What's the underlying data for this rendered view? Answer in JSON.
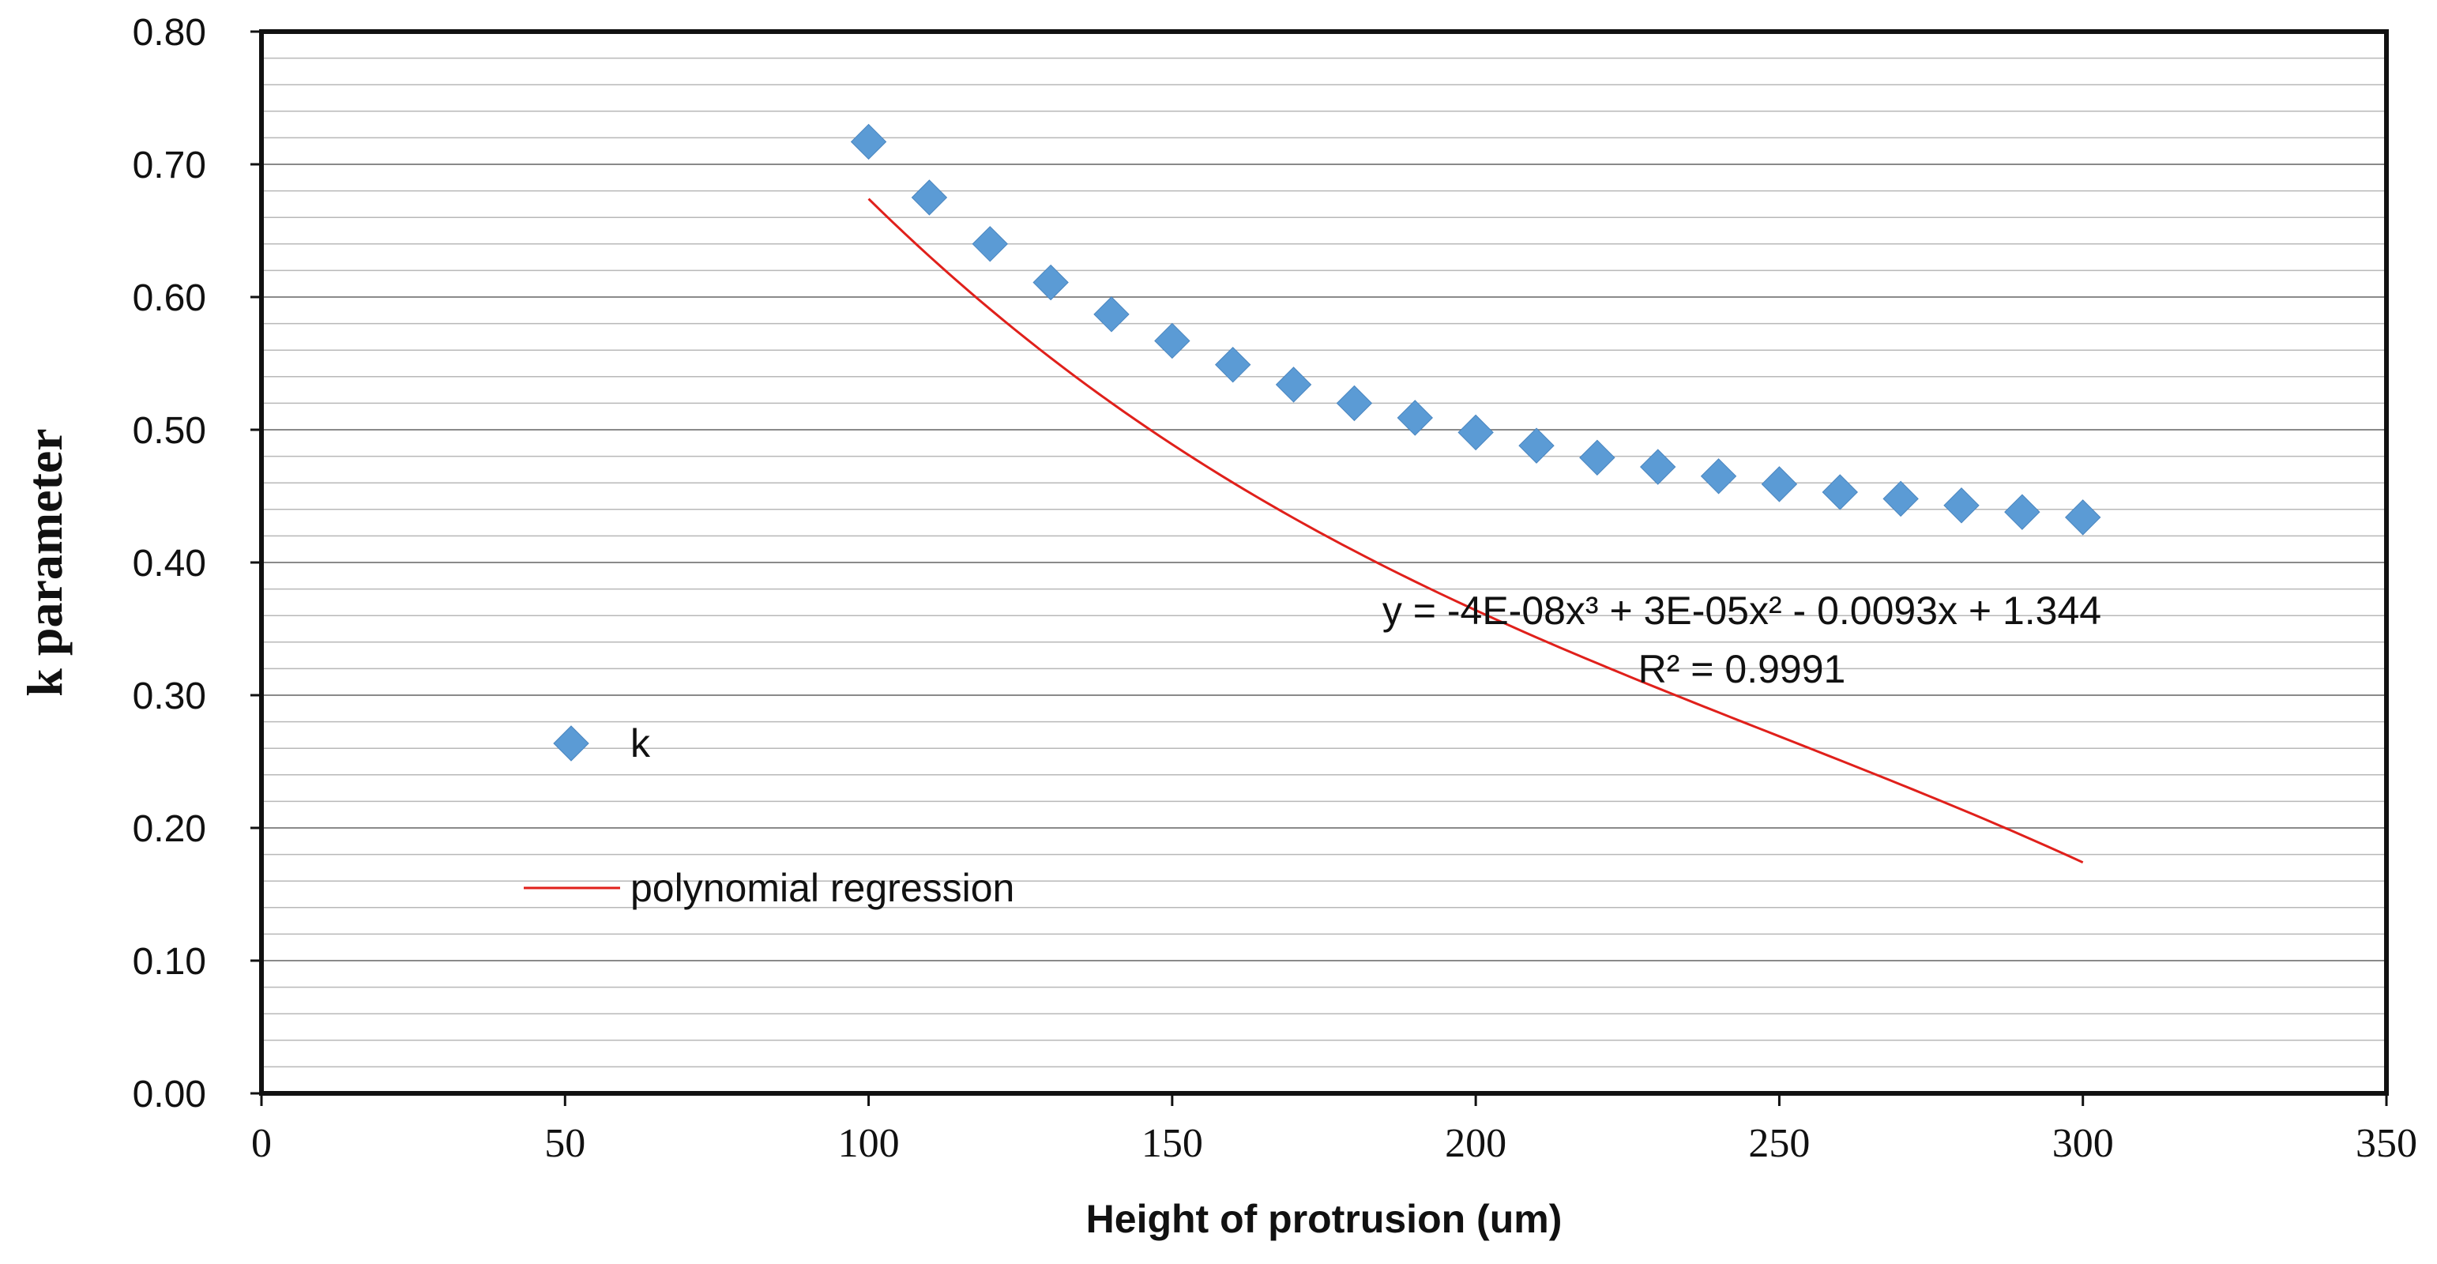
{
  "chart_data": {
    "type": "scatter",
    "title": "",
    "xlabel": "Height of protrusion (um)",
    "ylabel": "k parameter",
    "xlim": [
      0,
      350
    ],
    "ylim": [
      0,
      0.8
    ],
    "x_ticks": [
      "0",
      "50",
      "100",
      "150",
      "200",
      "250",
      "300",
      "350"
    ],
    "y_ticks": [
      "0.00",
      "0.10",
      "0.20",
      "0.30",
      "0.40",
      "0.50",
      "0.60",
      "0.70",
      "0.80"
    ],
    "grid": true,
    "legend_position": "left-middle",
    "series": [
      {
        "name": "k",
        "marker": "diamond",
        "color": "#5B9BD5",
        "x": [
          100,
          110,
          120,
          130,
          140,
          150,
          160,
          170,
          180,
          190,
          200,
          210,
          220,
          230,
          240,
          250,
          260,
          270,
          280,
          290,
          300
        ],
        "y": [
          0.717,
          0.675,
          0.64,
          0.611,
          0.587,
          0.567,
          0.549,
          0.534,
          0.52,
          0.509,
          0.498,
          0.488,
          0.479,
          0.472,
          0.465,
          0.459,
          0.453,
          0.448,
          0.443,
          0.438,
          0.434
        ]
      }
    ],
    "trendline": {
      "name": "polynomial regression",
      "color": "#E0201B",
      "x_range": [
        100,
        300
      ],
      "coefficients": {
        "a3": -4e-08,
        "a2": 3e-05,
        "a1": -0.0093,
        "a0": 1.344
      },
      "equation_text": "y = -4E-08x³ + 3E-05x² - 0.0093x + 1.344",
      "r2_text": "R² = 0.9991"
    }
  }
}
